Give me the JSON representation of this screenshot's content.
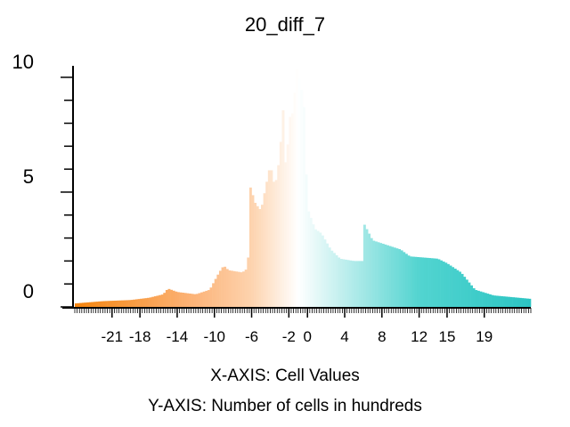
{
  "chart_data": {
    "type": "bar",
    "title": "20_diff_7",
    "xlabel": "X-AXIS: Cell Values",
    "ylabel": "Y-AXIS: Number of cells in hundreds",
    "xlim": [
      -25,
      24
    ],
    "ylim": [
      0,
      10.5
    ],
    "x_ticks": [
      -21,
      -18,
      -14,
      -10,
      -6,
      -2,
      0,
      4,
      8,
      12,
      15,
      19
    ],
    "y_ticks": [
      0,
      5,
      10
    ],
    "grid": false,
    "bin_width": 0.25,
    "value_profile": [
      [
        -25,
        0.15
      ],
      [
        -22,
        0.25
      ],
      [
        -19,
        0.3
      ],
      [
        -17,
        0.4
      ],
      [
        -15.5,
        0.55
      ],
      [
        -15,
        0.8
      ],
      [
        -14,
        0.65
      ],
      [
        -12,
        0.55
      ],
      [
        -10.5,
        0.75
      ],
      [
        -9.5,
        1.5
      ],
      [
        -9,
        1.8
      ],
      [
        -8.5,
        1.6
      ],
      [
        -7,
        1.5
      ],
      [
        -6.4,
        1.7
      ],
      [
        -6.2,
        5.3
      ],
      [
        -5.6,
        4.5
      ],
      [
        -5,
        4.2
      ],
      [
        -4.6,
        5.0
      ],
      [
        -4,
        6.2
      ],
      [
        -3.5,
        5.2
      ],
      [
        -3,
        6.5
      ],
      [
        -2.6,
        8.7
      ],
      [
        -2.3,
        5.5
      ],
      [
        -2,
        8.2
      ],
      [
        -1.5,
        8.5
      ],
      [
        -1.2,
        10.5
      ],
      [
        -0.8,
        9.8
      ],
      [
        -0.4,
        9.0
      ],
      [
        0,
        4.3
      ],
      [
        0.8,
        3.4
      ],
      [
        1.5,
        3.2
      ],
      [
        2.5,
        2.5
      ],
      [
        3.5,
        2.1
      ],
      [
        5,
        2.0
      ],
      [
        5.9,
        2.0
      ],
      [
        6.1,
        3.6
      ],
      [
        7,
        2.9
      ],
      [
        8.5,
        2.7
      ],
      [
        10,
        2.5
      ],
      [
        11,
        2.2
      ],
      [
        14,
        2.1
      ],
      [
        15,
        1.9
      ],
      [
        16.5,
        1.5
      ],
      [
        18,
        0.75
      ],
      [
        20,
        0.5
      ],
      [
        24,
        0.35
      ]
    ],
    "color_stops": [
      [
        -25,
        "#f5850f"
      ],
      [
        -12,
        "#fcb47a"
      ],
      [
        -6,
        "#fdd3ae"
      ],
      [
        -1,
        "#ffffff"
      ],
      [
        4,
        "#bdeeed"
      ],
      [
        12,
        "#52d4d0"
      ],
      [
        24,
        "#2cc5c3"
      ]
    ]
  }
}
